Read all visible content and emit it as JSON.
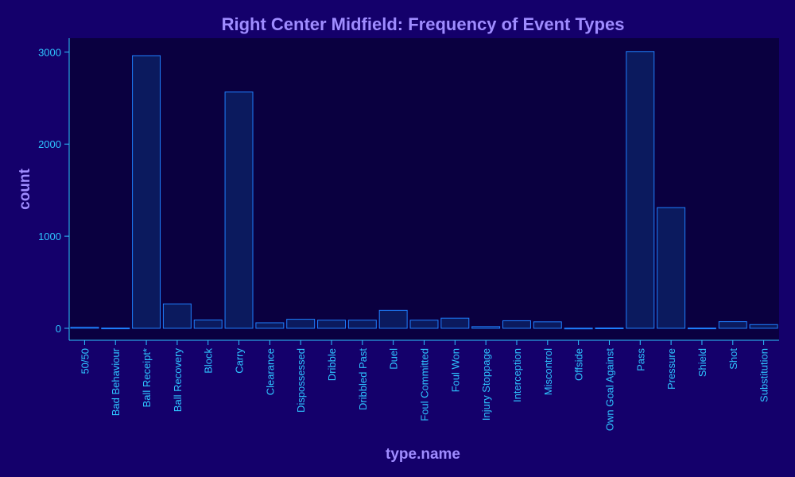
{
  "colors": {
    "page_background": "#14006b",
    "plot_background": "#0a0040",
    "bar_fill": "#0b1a5e",
    "bar_stroke": "#1f7fff",
    "axis_line": "#2ec4ff",
    "tick_label": "#2ec4ff",
    "title_text": "#9f8cff"
  },
  "chart_data": {
    "type": "bar",
    "title": "Right Center Midfield: Frequency of Event Types",
    "xlabel": "type.name",
    "ylabel": "count",
    "ylim": [
      -130,
      3150
    ],
    "yticks": [
      0,
      1000,
      2000,
      3000
    ],
    "ytick_labels": [
      "0",
      "1000",
      "2000",
      "3000"
    ],
    "grid": false,
    "categories": [
      "50/50",
      "Bad Behaviour",
      "Ball Receipt*",
      "Ball Recovery",
      "Block",
      "Carry",
      "Clearance",
      "Dispossessed",
      "Dribble",
      "Dribbled Past",
      "Duel",
      "Foul Committed",
      "Foul Won",
      "Injury Stoppage",
      "Interception",
      "Miscontrol",
      "Offside",
      "Own Goal Against",
      "Pass",
      "Pressure",
      "Shield",
      "Shot",
      "Substitution"
    ],
    "values": [
      12,
      3,
      2960,
      265,
      90,
      2565,
      60,
      98,
      88,
      88,
      195,
      88,
      110,
      18,
      82,
      70,
      2,
      4,
      3005,
      1310,
      3,
      72,
      40
    ]
  }
}
